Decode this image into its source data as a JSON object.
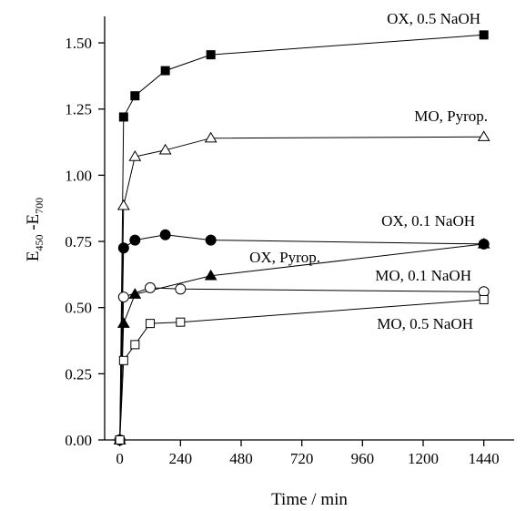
{
  "chart_data": {
    "type": "line",
    "xlabel": "Time / min",
    "ylabel": {
      "main_1": "E",
      "sub_1": "450",
      "main_2": " -E",
      "sub_2": "700"
    },
    "xlim": [
      -60,
      1560
    ],
    "ylim": [
      0,
      1.6
    ],
    "xticks": [
      0,
      240,
      480,
      720,
      960,
      1200,
      1440
    ],
    "xtick_labels": [
      "0",
      "240",
      "480",
      "720",
      "960",
      "1200",
      "1440"
    ],
    "yticks": [
      0,
      0.25,
      0.5,
      0.75,
      1.0,
      1.25,
      1.5
    ],
    "ytick_labels": [
      "0.00",
      "0.25",
      "0.50",
      "0.75",
      "1.00",
      "1.25",
      "1.50"
    ],
    "grid": false,
    "legend": "none (series labelled directly on the plot)",
    "series": [
      {
        "name": "OX, 0.5 NaOH",
        "marker": "square-filled",
        "x": [
          0,
          15,
          60,
          180,
          360,
          1440
        ],
        "y": [
          0.0,
          1.22,
          1.3,
          1.395,
          1.455,
          1.53
        ]
      },
      {
        "name": "MO, Pyrop.",
        "marker": "triangle-open",
        "x": [
          0,
          15,
          60,
          180,
          360,
          1440
        ],
        "y": [
          0.0,
          0.885,
          1.07,
          1.095,
          1.14,
          1.145
        ]
      },
      {
        "name": "OX, 0.1 NaOH",
        "marker": "circle-filled",
        "x": [
          0,
          15,
          60,
          180,
          360,
          1440
        ],
        "y": [
          0.0,
          0.725,
          0.755,
          0.775,
          0.755,
          0.74
        ]
      },
      {
        "name": "OX, Pyrop.",
        "marker": "triangle-filled",
        "x": [
          0,
          15,
          60,
          360,
          1440
        ],
        "y": [
          0.0,
          0.44,
          0.55,
          0.62,
          0.74
        ]
      },
      {
        "name": "MO, 0.1 NaOH",
        "marker": "circle-open",
        "x": [
          0,
          15,
          120,
          240,
          1440
        ],
        "y": [
          0.0,
          0.54,
          0.575,
          0.57,
          0.56
        ]
      },
      {
        "name": "MO, 0.5 NaOH",
        "marker": "square-open",
        "x": [
          0,
          15,
          60,
          120,
          240,
          1440
        ],
        "y": [
          0.0,
          0.3,
          0.36,
          0.44,
          0.445,
          0.53
        ]
      }
    ]
  }
}
